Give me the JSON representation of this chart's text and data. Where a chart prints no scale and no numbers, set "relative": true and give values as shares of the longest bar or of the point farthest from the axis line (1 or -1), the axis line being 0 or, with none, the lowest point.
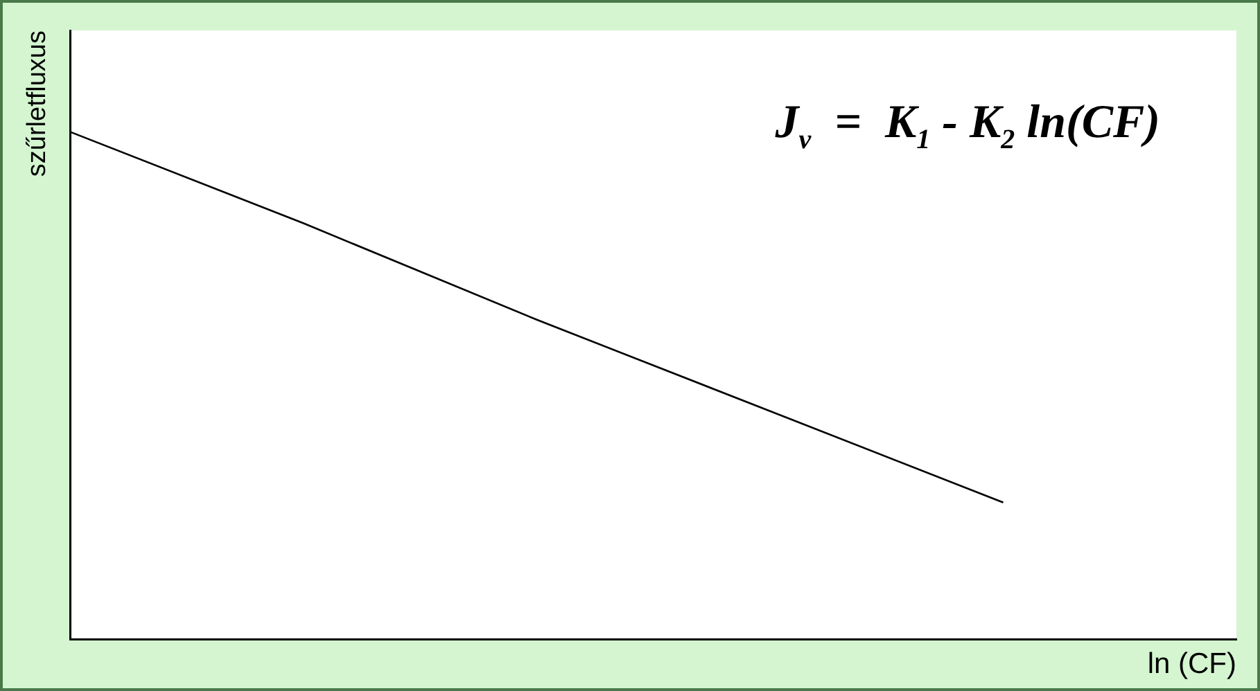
{
  "chart_data": {
    "type": "line",
    "relative": true,
    "xlabel": "ln (CF)",
    "ylabel": "szűrletfluxus",
    "categories": [
      null,
      null,
      null,
      null,
      null,
      null
    ],
    "series": [
      {
        "color": "#000000",
        "values": [
          1,
          0.82,
          0.63,
          0.45,
          0.27,
          null
        ]
      }
    ],
    "annotations": [
      "J$_{v}$  =  K$_{1}$ - K$_{2}$ ln(CF)"
    ],
    "grid": false,
    "legend": false,
    "marker": "none",
    "line_style": "solid"
  }
}
